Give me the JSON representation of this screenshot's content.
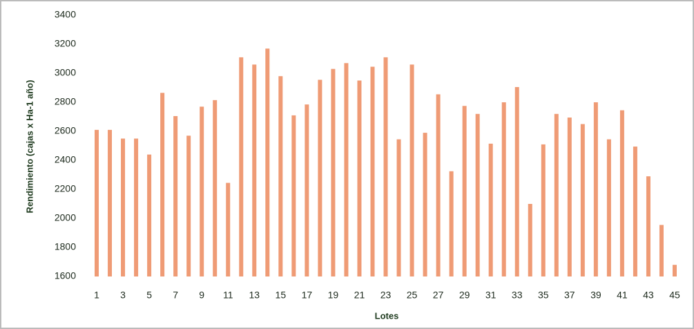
{
  "chart_data": {
    "type": "bar",
    "x_label": "Lotes",
    "y_label": "Rendimiento (cajas x Ha-1 año)",
    "categories": [
      "1",
      null,
      "3",
      null,
      "5",
      null,
      "7",
      null,
      "9",
      null,
      "11",
      null,
      "13",
      null,
      "15",
      null,
      "17",
      null,
      "19",
      null,
      "21",
      null,
      "23",
      null,
      "25",
      null,
      "27",
      null,
      "29",
      null,
      "31",
      null,
      "33",
      null,
      "35",
      null,
      "37",
      null,
      "39",
      null,
      "41",
      null,
      "43",
      null,
      "45"
    ],
    "values": [
      2610,
      2610,
      2550,
      2550,
      2440,
      2865,
      2705,
      2570,
      2770,
      2815,
      2245,
      3110,
      3060,
      3170,
      2980,
      2710,
      2785,
      2955,
      3030,
      3070,
      2950,
      3045,
      3110,
      2545,
      3060,
      2590,
      2855,
      2325,
      2775,
      2720,
      2515,
      2800,
      2905,
      2100,
      2510,
      2720,
      2695,
      2650,
      2800,
      2545,
      2745,
      2495,
      2290,
      1955,
      1680
    ],
    "color": "#ef9b75",
    "ylim": [
      1600,
      3400
    ],
    "yticks": [
      1600,
      1800,
      2000,
      2200,
      2400,
      2600,
      2800,
      3000,
      3200,
      3400
    ],
    "grid": false
  }
}
